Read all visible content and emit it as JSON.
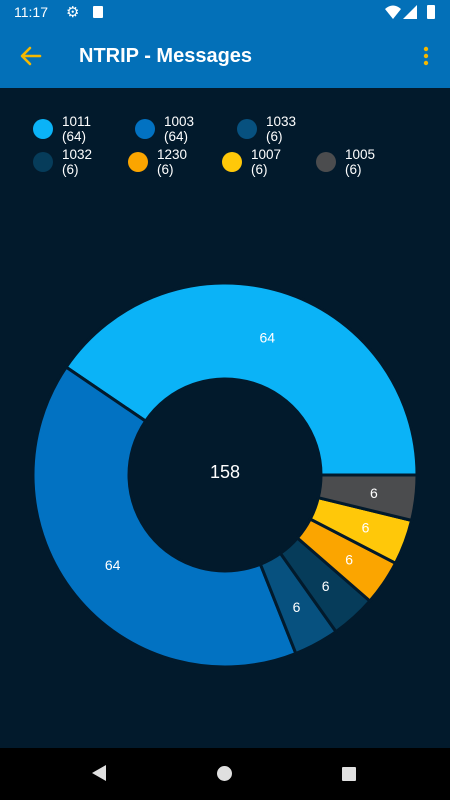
{
  "status_bar": {
    "time": "11:17"
  },
  "app_bar": {
    "title": "NTRIP - Messages"
  },
  "colors": {
    "background": "#021a2c",
    "bar": "#0370b8",
    "accent": "#f5b800"
  },
  "icons": {
    "back": "arrow-left-icon",
    "menu": "more-vert-icon",
    "settings": "gear-icon",
    "sd": "sd-card-icon",
    "wifi": "wifi-icon",
    "cell": "cell-signal-icon",
    "battery": "battery-icon"
  },
  "chart_data": {
    "type": "pie",
    "donut": true,
    "center_label": "158",
    "legend_placement": "top",
    "legend": [
      "1011 (64)",
      "1003 (64)",
      "1033 (6)",
      "1032 (6)",
      "1230 (6)",
      "1007 (6)",
      "1005 (6)"
    ],
    "slices": [
      {
        "label": "1011",
        "value": 64,
        "color": "#0bb3f7"
      },
      {
        "label": "1003",
        "value": 64,
        "color": "#0272c2"
      },
      {
        "label": "1033",
        "value": 6,
        "color": "#07517f"
      },
      {
        "label": "1032",
        "value": 6,
        "color": "#063c5a"
      },
      {
        "label": "1230",
        "value": 6,
        "color": "#fba500"
      },
      {
        "label": "1007",
        "value": 6,
        "color": "#ffc809"
      },
      {
        "label": "1005",
        "value": 6,
        "color": "#4b4c4e"
      }
    ]
  }
}
